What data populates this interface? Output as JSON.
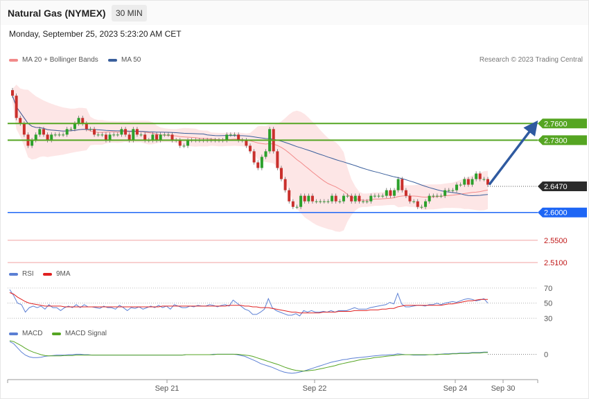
{
  "header": {
    "instrument": "Natural Gas (NYMEX)",
    "timeframe": "30 MIN",
    "datetime": "Monday, September 25, 2023 5:23:20 AM CET"
  },
  "legend_main": [
    {
      "label": "MA 20 + Bollinger Bands",
      "color": "#f28a8a"
    },
    {
      "label": "MA 50",
      "color": "#3a5f9c"
    }
  ],
  "credit": "Research © 2023 Trading Central",
  "legend_rsi": [
    {
      "label": "RSI",
      "color": "#5b7fd4"
    },
    {
      "label": "9MA",
      "color": "#e02020"
    }
  ],
  "legend_macd": [
    {
      "label": "MACD",
      "color": "#5b7fd4"
    },
    {
      "label": "MACD Signal",
      "color": "#55a522"
    }
  ],
  "colors": {
    "up_candle": "#2ca02c",
    "down_candle": "#c9302c",
    "resistance": "#55a522",
    "support": "#1e66f5",
    "target": "#f0a0a0",
    "last_price": "#2b2b2b",
    "arrow": "#2f5aa0"
  },
  "chart_data": [
    {
      "type": "candlestick",
      "panel": "price",
      "ylim": [
        2.49,
        2.87
      ],
      "x_ticks": [
        "Sep 21",
        "Sep 22",
        "Sep 24",
        "Sep 30"
      ],
      "series": [
        {
          "name": "MA 20 + Bollinger Bands",
          "role": "ma20"
        },
        {
          "name": "MA 50",
          "role": "ma50"
        }
      ],
      "levels": [
        {
          "value": 2.76,
          "label": "2.7600",
          "kind": "resistance"
        },
        {
          "value": 2.73,
          "label": "2.7300",
          "kind": "resistance"
        },
        {
          "value": 2.647,
          "label": "2.6470",
          "kind": "last"
        },
        {
          "value": 2.6,
          "label": "2.6000",
          "kind": "support"
        },
        {
          "value": 2.55,
          "label": "2.5500",
          "kind": "target"
        },
        {
          "value": 2.51,
          "label": "2.5100",
          "kind": "target"
        }
      ],
      "closes": [
        2.81,
        2.77,
        2.76,
        2.74,
        2.72,
        2.73,
        2.74,
        2.75,
        2.74,
        2.73,
        2.74,
        2.74,
        2.74,
        2.74,
        2.75,
        2.75,
        2.76,
        2.77,
        2.76,
        2.75,
        2.75,
        2.74,
        2.74,
        2.74,
        2.73,
        2.74,
        2.74,
        2.74,
        2.75,
        2.74,
        2.73,
        2.75,
        2.74,
        2.74,
        2.73,
        2.73,
        2.74,
        2.73,
        2.74,
        2.74,
        2.74,
        2.73,
        2.73,
        2.72,
        2.72,
        2.73,
        2.73,
        2.73,
        2.73,
        2.73,
        2.73,
        2.73,
        2.73,
        2.73,
        2.73,
        2.74,
        2.74,
        2.74,
        2.73,
        2.73,
        2.72,
        2.71,
        2.69,
        2.68,
        2.7,
        2.71,
        2.75,
        2.71,
        2.68,
        2.66,
        2.64,
        2.62,
        2.61,
        2.61,
        2.63,
        2.62,
        2.63,
        2.62,
        2.62,
        2.62,
        2.62,
        2.62,
        2.63,
        2.62,
        2.62,
        2.63,
        2.63,
        2.62,
        2.63,
        2.62,
        2.62,
        2.62,
        2.63,
        2.63,
        2.63,
        2.63,
        2.64,
        2.63,
        2.64,
        2.66,
        2.64,
        2.63,
        2.62,
        2.62,
        2.61,
        2.61,
        2.62,
        2.63,
        2.63,
        2.63,
        2.63,
        2.64,
        2.64,
        2.64,
        2.65,
        2.65,
        2.66,
        2.65,
        2.66,
        2.67,
        2.66,
        2.66,
        2.65
      ]
    },
    {
      "type": "line",
      "panel": "rsi",
      "ylim": [
        22,
        80
      ],
      "y_ticks": [
        70,
        50,
        30
      ],
      "series": [
        {
          "name": "RSI",
          "values": [
            68,
            60,
            50,
            48,
            38,
            44,
            46,
            44,
            46,
            42,
            48,
            44,
            44,
            40,
            44,
            46,
            44,
            48,
            44,
            48,
            45,
            45,
            44,
            43,
            46,
            44,
            44,
            42,
            47,
            44,
            40,
            44,
            43,
            45,
            42,
            44,
            46,
            44,
            47,
            44,
            46,
            42,
            48,
            46,
            44,
            44,
            46,
            45,
            47,
            46,
            46,
            48,
            47,
            45,
            47,
            48,
            46,
            54,
            50,
            46,
            42,
            40,
            35,
            35,
            38,
            42,
            56,
            44,
            40,
            38,
            36,
            34,
            34,
            36,
            33,
            40,
            38,
            40,
            38,
            38,
            39,
            38,
            40,
            38,
            40,
            40,
            40,
            42,
            44,
            42,
            42,
            42,
            44,
            45,
            46,
            47,
            48,
            51,
            49,
            63,
            49,
            45,
            45,
            46,
            47,
            47,
            46,
            48,
            48,
            50,
            48,
            50,
            51,
            52,
            51,
            53,
            55,
            56,
            55,
            53,
            54,
            56,
            50
          ]
        },
        {
          "name": "9MA",
          "values": [
            64,
            62,
            58,
            55,
            52,
            50,
            49,
            48,
            47,
            46,
            46,
            46,
            46,
            46,
            45,
            45,
            45,
            45,
            45,
            45,
            45,
            45,
            45,
            45,
            45,
            45,
            45,
            45,
            45,
            45,
            45,
            45,
            45,
            45,
            45,
            45,
            45,
            45,
            45,
            46,
            46,
            46,
            46,
            46,
            46,
            46,
            46,
            46,
            46,
            46,
            46,
            46,
            46,
            46,
            46,
            46,
            47,
            47,
            47,
            47,
            46,
            46,
            45,
            45,
            44,
            44,
            44,
            43,
            42,
            41,
            40,
            39,
            38,
            38,
            37,
            37,
            37,
            37,
            37,
            37,
            38,
            38,
            38,
            38,
            39,
            39,
            39,
            39,
            40,
            40,
            40,
            40,
            41,
            41,
            41,
            42,
            42,
            43,
            43,
            45,
            46,
            47,
            47,
            47,
            47,
            47,
            47,
            47,
            47,
            47,
            47,
            48,
            49,
            49,
            50,
            51,
            52,
            53,
            53,
            54,
            55,
            55,
            55
          ]
        }
      ]
    },
    {
      "type": "line",
      "panel": "macd",
      "ylim": [
        -0.055,
        0.035
      ],
      "y_ticks": [
        0
      ],
      "series": [
        {
          "name": "MACD",
          "values": [
            0.03,
            0.025,
            0.015,
            0.005,
            -0.002,
            -0.006,
            -0.008,
            -0.008,
            -0.007,
            -0.005,
            -0.004,
            -0.003,
            -0.002,
            -0.002,
            -0.002,
            -0.001,
            -0.001,
            0.0,
            0.0,
            -0.001,
            -0.001,
            -0.002,
            -0.002,
            -0.002,
            -0.002,
            -0.002,
            -0.002,
            -0.002,
            -0.002,
            -0.002,
            -0.002,
            -0.002,
            -0.002,
            -0.002,
            -0.002,
            -0.002,
            -0.002,
            -0.002,
            -0.002,
            -0.002,
            -0.002,
            -0.002,
            -0.002,
            -0.002,
            -0.002,
            -0.001,
            -0.001,
            -0.001,
            -0.001,
            -0.001,
            -0.001,
            -0.001,
            0.0,
            0.0,
            0.0,
            0.0,
            0.0,
            0.0,
            -0.001,
            -0.003,
            -0.005,
            -0.009,
            -0.013,
            -0.017,
            -0.022,
            -0.025,
            -0.028,
            -0.031,
            -0.035,
            -0.039,
            -0.042,
            -0.044,
            -0.045,
            -0.044,
            -0.042,
            -0.04,
            -0.037,
            -0.034,
            -0.031,
            -0.028,
            -0.025,
            -0.022,
            -0.019,
            -0.017,
            -0.015,
            -0.013,
            -0.012,
            -0.01,
            -0.009,
            -0.008,
            -0.007,
            -0.006,
            -0.005,
            -0.004,
            -0.003,
            -0.002,
            -0.002,
            -0.001,
            -0.001,
            0.001,
            0.0,
            -0.001,
            -0.001,
            -0.002,
            -0.002,
            -0.002,
            -0.002,
            -0.001,
            -0.001,
            0.0,
            0.0,
            0.001,
            0.001,
            0.002,
            0.002,
            0.003,
            0.003,
            0.003,
            0.004,
            0.004,
            0.004,
            0.005,
            0.005
          ]
        },
        {
          "name": "MACD Signal",
          "values": [
            0.032,
            0.03,
            0.025,
            0.02,
            0.014,
            0.009,
            0.005,
            0.002,
            -0.001,
            -0.003,
            -0.004,
            -0.004,
            -0.004,
            -0.004,
            -0.003,
            -0.003,
            -0.003,
            -0.002,
            -0.002,
            -0.002,
            -0.002,
            -0.002,
            -0.002,
            -0.002,
            -0.002,
            -0.002,
            -0.002,
            -0.002,
            -0.002,
            -0.002,
            -0.002,
            -0.002,
            -0.002,
            -0.002,
            -0.002,
            -0.002,
            -0.002,
            -0.002,
            -0.002,
            -0.002,
            -0.002,
            -0.002,
            -0.002,
            -0.002,
            -0.002,
            -0.001,
            -0.001,
            -0.001,
            -0.001,
            -0.001,
            -0.001,
            -0.001,
            -0.001,
            0.0,
            0.0,
            0.0,
            0.0,
            0.0,
            0.0,
            -0.001,
            -0.002,
            -0.003,
            -0.005,
            -0.008,
            -0.011,
            -0.014,
            -0.017,
            -0.02,
            -0.023,
            -0.026,
            -0.03,
            -0.033,
            -0.036,
            -0.038,
            -0.039,
            -0.04,
            -0.039,
            -0.038,
            -0.037,
            -0.035,
            -0.033,
            -0.031,
            -0.029,
            -0.027,
            -0.024,
            -0.022,
            -0.02,
            -0.018,
            -0.016,
            -0.014,
            -0.012,
            -0.011,
            -0.01,
            -0.008,
            -0.007,
            -0.006,
            -0.005,
            -0.004,
            -0.003,
            -0.002,
            -0.001,
            -0.001,
            -0.001,
            -0.001,
            -0.001,
            -0.001,
            -0.001,
            -0.001,
            -0.001,
            -0.001,
            0.0,
            0.0,
            0.0,
            0.001,
            0.001,
            0.002,
            0.002,
            0.002,
            0.003,
            0.003,
            0.003,
            0.004,
            0.004
          ]
        }
      ]
    }
  ]
}
